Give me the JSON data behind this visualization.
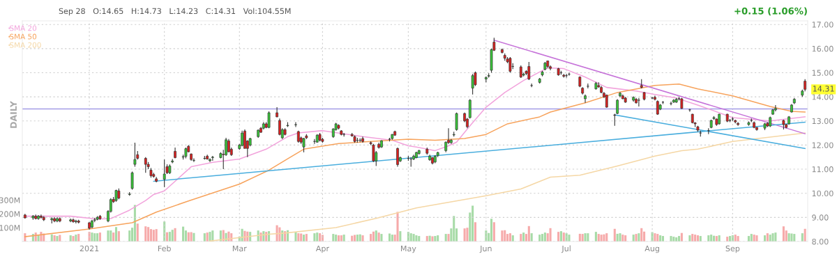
{
  "chart_data": {
    "type": "candlestick",
    "x": [
      "2020-12-11",
      "2020-12-14",
      "2020-12-15",
      "2020-12-16",
      "2020-12-17",
      "2020-12-18",
      "2020-12-21",
      "2020-12-22",
      "2020-12-23",
      "2020-12-24",
      "2020-12-28",
      "2020-12-29",
      "2020-12-30",
      "2020-12-31",
      "2021-01-04",
      "2021-01-05",
      "2021-01-06",
      "2021-01-07",
      "2021-01-08",
      "2021-01-11",
      "2021-01-12",
      "2021-01-13",
      "2021-01-14",
      "2021-01-15",
      "2021-01-19",
      "2021-01-20",
      "2021-01-21",
      "2021-01-22",
      "2021-01-25",
      "2021-01-26",
      "2021-01-27",
      "2021-01-28",
      "2021-01-29",
      "2021-02-01",
      "2021-02-02",
      "2021-02-03",
      "2021-02-04",
      "2021-02-05",
      "2021-02-08",
      "2021-02-09",
      "2021-02-10",
      "2021-02-11",
      "2021-02-12",
      "2021-02-16",
      "2021-02-17",
      "2021-02-18",
      "2021-02-19",
      "2021-02-22",
      "2021-02-23",
      "2021-02-24",
      "2021-02-25",
      "2021-02-26",
      "2021-03-01",
      "2021-03-02",
      "2021-03-03",
      "2021-03-04",
      "2021-03-05",
      "2021-03-08",
      "2021-03-09",
      "2021-03-10",
      "2021-03-11",
      "2021-03-12",
      "2021-03-15",
      "2021-03-16",
      "2021-03-17",
      "2021-03-18",
      "2021-03-19",
      "2021-03-22",
      "2021-03-23",
      "2021-03-24",
      "2021-03-25",
      "2021-03-26",
      "2021-03-29",
      "2021-03-30",
      "2021-03-31",
      "2021-04-01",
      "2021-04-05",
      "2021-04-06",
      "2021-04-07",
      "2021-04-08",
      "2021-04-09",
      "2021-04-12",
      "2021-04-13",
      "2021-04-14",
      "2021-04-15",
      "2021-04-16",
      "2021-04-19",
      "2021-04-20",
      "2021-04-21",
      "2021-04-22",
      "2021-04-23",
      "2021-04-26",
      "2021-04-27",
      "2021-04-28",
      "2021-04-29",
      "2021-04-30",
      "2021-05-03",
      "2021-05-04",
      "2021-05-05",
      "2021-05-06",
      "2021-05-07",
      "2021-05-10",
      "2021-05-11",
      "2021-05-12",
      "2021-05-13",
      "2021-05-14",
      "2021-05-17",
      "2021-05-18",
      "2021-05-19",
      "2021-05-20",
      "2021-05-21",
      "2021-05-24",
      "2021-05-25",
      "2021-05-26",
      "2021-05-27",
      "2021-05-28",
      "2021-06-01",
      "2021-06-02",
      "2021-06-03",
      "2021-06-04",
      "2021-06-07",
      "2021-06-08",
      "2021-06-09",
      "2021-06-10",
      "2021-06-11",
      "2021-06-14",
      "2021-06-15",
      "2021-06-16",
      "2021-06-17",
      "2021-06-18",
      "2021-06-21",
      "2021-06-22",
      "2021-06-23",
      "2021-06-24",
      "2021-06-25",
      "2021-06-28",
      "2021-06-29",
      "2021-06-30",
      "2021-07-01",
      "2021-07-02",
      "2021-07-06",
      "2021-07-07",
      "2021-07-08",
      "2021-07-09",
      "2021-07-12",
      "2021-07-13",
      "2021-07-14",
      "2021-07-15",
      "2021-07-16",
      "2021-07-19",
      "2021-07-20",
      "2021-07-21",
      "2021-07-22",
      "2021-07-23",
      "2021-07-26",
      "2021-07-27",
      "2021-07-28",
      "2021-07-29",
      "2021-07-30",
      "2021-08-02",
      "2021-08-03",
      "2021-08-04",
      "2021-08-05",
      "2021-08-06",
      "2021-08-09",
      "2021-08-10",
      "2021-08-11",
      "2021-08-12",
      "2021-08-13",
      "2021-08-16",
      "2021-08-17",
      "2021-08-18",
      "2021-08-19",
      "2021-08-20",
      "2021-08-23",
      "2021-08-24",
      "2021-08-25",
      "2021-08-26",
      "2021-08-27",
      "2021-08-30",
      "2021-08-31",
      "2021-09-01",
      "2021-09-02",
      "2021-09-03",
      "2021-09-07",
      "2021-09-08",
      "2021-09-09",
      "2021-09-10",
      "2021-09-13",
      "2021-09-14",
      "2021-09-15",
      "2021-09-16",
      "2021-09-17",
      "2021-09-20",
      "2021-09-21",
      "2021-09-22",
      "2021-09-23",
      "2021-09-24",
      "2021-09-27",
      "2021-09-28"
    ],
    "ohlc": [
      [
        9.1,
        9.15,
        8.95,
        8.98
      ],
      [
        8.98,
        9.1,
        8.9,
        9.05
      ],
      [
        9.05,
        9.12,
        8.92,
        8.95
      ],
      [
        8.95,
        9.1,
        8.9,
        9.05
      ],
      [
        9.05,
        9.12,
        8.95,
        9.0
      ],
      [
        9.0,
        9.05,
        8.85,
        8.9
      ],
      [
        8.9,
        9.0,
        8.75,
        8.95
      ],
      [
        8.95,
        9.0,
        8.8,
        8.85
      ],
      [
        8.85,
        9.0,
        8.8,
        8.95
      ],
      [
        8.95,
        9.0,
        8.8,
        8.85
      ],
      [
        8.85,
        8.95,
        8.8,
        8.9
      ],
      [
        8.9,
        8.95,
        8.78,
        8.82
      ],
      [
        8.82,
        8.9,
        8.75,
        8.85
      ],
      [
        8.85,
        8.9,
        8.75,
        8.8
      ],
      [
        8.78,
        8.8,
        8.5,
        8.55
      ],
      [
        8.6,
        8.9,
        8.55,
        8.85
      ],
      [
        8.88,
        8.98,
        8.8,
        8.9
      ],
      [
        8.92,
        9.05,
        8.88,
        9.0
      ],
      [
        9.05,
        9.1,
        8.9,
        8.95
      ],
      [
        8.85,
        9.3,
        8.8,
        9.25
      ],
      [
        9.25,
        9.8,
        9.2,
        9.74
      ],
      [
        9.75,
        9.85,
        9.6,
        9.65
      ],
      [
        9.7,
        10.15,
        9.65,
        10.12
      ],
      [
        10.1,
        10.2,
        9.75,
        9.8
      ],
      [
        9.95,
        10.05,
        9.9,
        9.97
      ],
      [
        10.2,
        10.9,
        10.15,
        10.85
      ],
      [
        11.2,
        12.1,
        11.1,
        11.4
      ],
      [
        11.6,
        11.75,
        11.4,
        11.45
      ],
      [
        11.45,
        11.5,
        10.85,
        11.2
      ],
      [
        11.2,
        11.3,
        11.0,
        11.1
      ],
      [
        10.96,
        11.05,
        10.65,
        10.73
      ],
      [
        10.78,
        10.85,
        10.65,
        10.7
      ],
      [
        10.6,
        10.68,
        10.45,
        10.5
      ],
      [
        10.58,
        11.4,
        10.26,
        10.8
      ],
      [
        11.1,
        11.2,
        10.8,
        10.85
      ],
      [
        10.85,
        11.2,
        10.8,
        11.13
      ],
      [
        11.3,
        11.42,
        11.25,
        11.34
      ],
      [
        11.74,
        11.9,
        11.45,
        11.48
      ],
      [
        11.5,
        11.6,
        11.4,
        11.52
      ],
      [
        11.53,
        11.9,
        11.45,
        11.85
      ],
      [
        11.95,
        12.0,
        11.7,
        11.72
      ],
      [
        11.63,
        11.65,
        11.35,
        11.4
      ],
      [
        11.36,
        11.45,
        11.3,
        11.37
      ],
      [
        11.44,
        11.55,
        11.4,
        11.45
      ],
      [
        11.54,
        11.6,
        11.4,
        11.42
      ],
      [
        11.35,
        11.45,
        11.3,
        11.4
      ],
      [
        11.48,
        11.55,
        11.35,
        11.5
      ],
      [
        11.48,
        11.7,
        11.45,
        11.65
      ],
      [
        11.62,
        11.8,
        11.0,
        11.6
      ],
      [
        11.6,
        12.3,
        11.55,
        12.22
      ],
      [
        12.17,
        12.25,
        11.7,
        11.72
      ],
      [
        11.83,
        11.9,
        11.55,
        11.6
      ],
      [
        11.85,
        12.05,
        11.8,
        12.0
      ],
      [
        11.98,
        12.6,
        11.95,
        12.5
      ],
      [
        12.58,
        12.65,
        11.86,
        11.86
      ],
      [
        12.17,
        12.2,
        11.5,
        11.86
      ],
      [
        12.0,
        12.3,
        11.95,
        12.27
      ],
      [
        12.35,
        12.65,
        12.3,
        12.62
      ],
      [
        12.7,
        12.75,
        12.5,
        12.53
      ],
      [
        12.7,
        12.95,
        12.65,
        12.88
      ],
      [
        12.88,
        12.95,
        12.7,
        12.73
      ],
      [
        12.73,
        13.4,
        12.7,
        13.34
      ],
      [
        13.34,
        13.57,
        13.15,
        13.17
      ],
      [
        13.02,
        13.1,
        12.4,
        12.44
      ],
      [
        12.3,
        12.7,
        12.25,
        12.64
      ],
      [
        12.64,
        12.7,
        12.4,
        12.44
      ],
      [
        12.8,
        12.95,
        12.75,
        12.82
      ],
      [
        12.84,
        12.95,
        12.75,
        12.85
      ],
      [
        12.56,
        12.6,
        12.1,
        12.15
      ],
      [
        12.3,
        12.35,
        12.05,
        12.12
      ],
      [
        11.92,
        12.3,
        11.7,
        12.27
      ],
      [
        12.38,
        12.45,
        12.25,
        12.3
      ],
      [
        12.15,
        12.25,
        12.05,
        12.15
      ],
      [
        12.12,
        12.45,
        12.1,
        12.41
      ],
      [
        12.44,
        12.5,
        12.15,
        12.2
      ],
      [
        12.24,
        12.3,
        12.1,
        12.15
      ],
      [
        12.35,
        12.7,
        12.3,
        12.67
      ],
      [
        12.64,
        12.92,
        12.6,
        12.88
      ],
      [
        12.82,
        12.86,
        12.65,
        12.7
      ],
      [
        12.59,
        12.62,
        12.4,
        12.44
      ],
      [
        12.44,
        12.5,
        12.35,
        12.44
      ],
      [
        12.44,
        12.5,
        12.35,
        12.38
      ],
      [
        12.35,
        12.4,
        12.1,
        12.15
      ],
      [
        12.2,
        12.3,
        12.1,
        12.2
      ],
      [
        12.2,
        12.28,
        12.12,
        12.2
      ],
      [
        12.27,
        12.35,
        12.1,
        12.15
      ],
      [
        12.1,
        12.15,
        12.0,
        12.06
      ],
      [
        12.0,
        12.05,
        11.3,
        11.34
      ],
      [
        11.34,
        11.75,
        11.13,
        11.69
      ],
      [
        12.03,
        12.1,
        11.85,
        11.9
      ],
      [
        11.92,
        12.2,
        11.88,
        12.18
      ],
      [
        12.24,
        12.3,
        12.15,
        12.24
      ],
      [
        12.27,
        12.46,
        12.22,
        12.44
      ],
      [
        12.56,
        12.6,
        12.38,
        12.41
      ],
      [
        11.86,
        11.9,
        11.1,
        11.19
      ],
      [
        11.34,
        11.52,
        11.3,
        11.48
      ],
      [
        11.45,
        11.55,
        11.35,
        11.45
      ],
      [
        11.42,
        11.5,
        11.1,
        11.42
      ],
      [
        11.42,
        11.6,
        11.38,
        11.54
      ],
      [
        11.48,
        11.72,
        11.45,
        11.69
      ],
      [
        11.65,
        11.8,
        11.6,
        11.77
      ],
      [
        11.83,
        11.9,
        11.6,
        11.66
      ],
      [
        11.39,
        11.6,
        11.35,
        11.54
      ],
      [
        11.48,
        11.5,
        11.2,
        11.25
      ],
      [
        11.3,
        11.58,
        11.25,
        11.54
      ],
      [
        11.57,
        11.72,
        11.5,
        11.69
      ],
      [
        11.77,
        12.15,
        11.7,
        12.12
      ],
      [
        12.2,
        12.7,
        12.05,
        12.1
      ],
      [
        12.1,
        12.25,
        12.05,
        12.2
      ],
      [
        12.42,
        12.55,
        12.35,
        12.44
      ],
      [
        12.64,
        13.35,
        12.6,
        13.31
      ],
      [
        13.31,
        13.35,
        12.95,
        13.0
      ],
      [
        13.08,
        13.12,
        12.7,
        12.76
      ],
      [
        13.14,
        13.9,
        13.1,
        13.86
      ],
      [
        14.36,
        14.95,
        14.1,
        14.88
      ],
      [
        15.0,
        15.05,
        14.45,
        14.5
      ],
      [
        14.74,
        14.85,
        14.6,
        14.8
      ],
      [
        14.86,
        14.98,
        14.8,
        14.88
      ],
      [
        15.1,
        16.0,
        15.0,
        15.96
      ],
      [
        16.27,
        16.45,
        15.9,
        15.93
      ],
      [
        15.96,
        16.0,
        15.8,
        15.84
      ],
      [
        15.72,
        15.8,
        15.5,
        15.6
      ],
      [
        15.57,
        15.65,
        15.4,
        15.45
      ],
      [
        15.6,
        15.65,
        15.0,
        15.06
      ],
      [
        15.26,
        15.4,
        15.15,
        15.26
      ],
      [
        15.24,
        15.3,
        14.78,
        14.82
      ],
      [
        14.9,
        15.0,
        14.85,
        14.94
      ],
      [
        15.06,
        15.1,
        14.9,
        14.97
      ],
      [
        15.26,
        15.45,
        14.7,
        14.74
      ],
      [
        14.47,
        14.55,
        14.4,
        14.47
      ],
      [
        14.6,
        14.78,
        14.55,
        14.74
      ],
      [
        14.91,
        15.08,
        14.85,
        15.03
      ],
      [
        15.14,
        15.45,
        15.1,
        15.4
      ],
      [
        15.49,
        15.5,
        15.2,
        15.26
      ],
      [
        15.25,
        15.3,
        15.1,
        15.18
      ],
      [
        15.17,
        15.2,
        14.88,
        14.91
      ],
      [
        15.0,
        15.08,
        14.92,
        15.0
      ],
      [
        14.9,
        14.95,
        14.8,
        14.85
      ],
      [
        14.88,
        14.95,
        14.8,
        14.88
      ],
      [
        14.94,
        15.0,
        14.88,
        14.94
      ],
      [
        14.82,
        14.85,
        14.4,
        14.44
      ],
      [
        14.36,
        14.4,
        14.1,
        14.15
      ],
      [
        13.92,
        14.1,
        13.75,
        14.04
      ],
      [
        14.44,
        14.55,
        14.35,
        14.44
      ],
      [
        14.33,
        14.62,
        14.3,
        14.56
      ],
      [
        14.47,
        14.6,
        14.38,
        14.41
      ],
      [
        14.39,
        14.45,
        14.15,
        14.18
      ],
      [
        14.15,
        14.2,
        13.95,
        14.0
      ],
      [
        14.07,
        14.1,
        13.55,
        13.57
      ],
      [
        13.25,
        13.3,
        12.8,
        13.23
      ],
      [
        13.31,
        13.9,
        13.28,
        13.86
      ],
      [
        14.04,
        14.2,
        13.98,
        14.15
      ],
      [
        14.04,
        14.1,
        13.9,
        13.92
      ],
      [
        13.95,
        14.0,
        13.75,
        13.78
      ],
      [
        13.86,
        14.02,
        13.8,
        13.98
      ],
      [
        13.9,
        13.95,
        13.72,
        13.75
      ],
      [
        13.86,
        13.95,
        13.6,
        13.86
      ],
      [
        14.47,
        14.73,
        14.35,
        14.39
      ],
      [
        14.18,
        14.2,
        13.85,
        13.9
      ],
      [
        13.95,
        14.0,
        13.9,
        13.95
      ],
      [
        13.98,
        14.05,
        13.85,
        13.9
      ],
      [
        13.81,
        13.85,
        13.25,
        13.28
      ],
      [
        13.49,
        13.7,
        13.45,
        13.66
      ],
      [
        13.78,
        13.82,
        13.7,
        13.78
      ],
      [
        13.72,
        13.8,
        13.65,
        13.72
      ],
      [
        13.78,
        13.9,
        13.75,
        13.86
      ],
      [
        13.78,
        13.95,
        13.75,
        13.9
      ],
      [
        13.92,
        14.0,
        13.85,
        13.92
      ],
      [
        13.92,
        13.95,
        13.5,
        13.52
      ],
      [
        13.46,
        13.5,
        13.38,
        13.46
      ],
      [
        13.28,
        13.3,
        12.9,
        12.93
      ],
      [
        12.92,
        12.95,
        12.75,
        12.88
      ],
      [
        12.76,
        12.8,
        12.55,
        12.62
      ],
      [
        12.5,
        12.6,
        12.35,
        12.5
      ],
      [
        12.6,
        12.7,
        12.45,
        12.6
      ],
      [
        12.73,
        13.05,
        12.7,
        13.02
      ],
      [
        13.1,
        13.2,
        13.05,
        13.14
      ],
      [
        13.08,
        13.1,
        12.8,
        12.85
      ],
      [
        12.88,
        13.3,
        12.85,
        13.28
      ],
      [
        13.28,
        13.3,
        12.95,
        12.99
      ],
      [
        13.02,
        13.08,
        12.95,
        13.02
      ],
      [
        13.08,
        13.15,
        13.0,
        13.08
      ],
      [
        13.02,
        13.05,
        12.9,
        12.96
      ],
      [
        12.9,
        12.95,
        12.8,
        12.85
      ],
      [
        12.85,
        12.98,
        12.8,
        12.93
      ],
      [
        13.02,
        13.1,
        12.95,
        13.02
      ],
      [
        12.93,
        12.98,
        12.7,
        12.73
      ],
      [
        12.73,
        12.75,
        12.6,
        12.64
      ],
      [
        12.7,
        12.92,
        12.62,
        12.88
      ],
      [
        12.9,
        12.95,
        12.75,
        12.79
      ],
      [
        12.79,
        13.18,
        12.75,
        13.14
      ],
      [
        13.28,
        13.5,
        13.25,
        13.46
      ],
      [
        13.46,
        13.66,
        13.4,
        13.52
      ],
      [
        13.02,
        13.05,
        12.65,
        12.85
      ],
      [
        12.85,
        12.88,
        12.7,
        12.73
      ],
      [
        12.88,
        13.2,
        12.85,
        13.17
      ],
      [
        13.37,
        13.7,
        13.35,
        13.66
      ],
      [
        13.75,
        13.95,
        13.7,
        13.9
      ],
      [
        14.07,
        14.3,
        14.0,
        14.24
      ],
      [
        14.65,
        14.73,
        14.23,
        14.31
      ]
    ],
    "colors": [
      "#d9201f",
      "#39c639",
      "#d9201f",
      "#39c639",
      "#d9201f",
      "#d9201f",
      "#39c639",
      "#d9201f",
      "#39c639",
      "#d9201f",
      "#39c639",
      "#d9201f",
      "#39c639",
      "#d9201f",
      "#d9201f",
      "#39c639",
      "#39c639",
      "#39c639",
      "#d9201f",
      "#39c639",
      "#39c639",
      "#d9201f",
      "#39c639",
      "#d9201f",
      "#39c639",
      "#39c639",
      "#39c639",
      "#d9201f",
      "#d9201f",
      "#d9201f",
      "#d9201f",
      "#d9201f",
      "#d9201f",
      "#39c639",
      "#d9201f",
      "#39c639",
      "#39c639",
      "#d9201f",
      "#39c639",
      "#39c639",
      "#d9201f",
      "#d9201f",
      "#39c639",
      "#39c639",
      "#d9201f",
      "#39c639",
      "#39c639",
      "#39c639",
      "#d9201f",
      "#39c639",
      "#d9201f",
      "#d9201f",
      "#39c639",
      "#39c639",
      "#d9201f",
      "#d9201f",
      "#39c639",
      "#39c639",
      "#d9201f",
      "#39c639",
      "#d9201f",
      "#39c639",
      "#d9201f",
      "#d9201f",
      "#39c639",
      "#d9201f",
      "#39c639",
      "#39c639",
      "#d9201f",
      "#d9201f",
      "#39c639",
      "#d9201f",
      "#333333",
      "#39c639",
      "#d9201f",
      "#d9201f",
      "#39c639",
      "#39c639",
      "#d9201f",
      "#d9201f",
      "#333333",
      "#d9201f",
      "#d9201f",
      "#333333",
      "#333333",
      "#d9201f",
      "#d9201f",
      "#d9201f",
      "#39c639",
      "#d9201f",
      "#39c639",
      "#333333",
      "#39c639",
      "#d9201f",
      "#d9201f",
      "#39c639",
      "#333333",
      "#333333",
      "#39c639",
      "#39c639",
      "#39c639",
      "#d9201f",
      "#39c639",
      "#d9201f",
      "#39c639",
      "#39c639",
      "#39c639",
      "#d9201f",
      "#39c639",
      "#39c639",
      "#39c639",
      "#d9201f",
      "#d9201f",
      "#39c639",
      "#39c639",
      "#d9201f",
      "#39c639",
      "#39c639",
      "#39c639",
      "#d9201f",
      "#d9201f",
      "#d9201f",
      "#d9201f",
      "#d9201f",
      "#333333",
      "#d9201f",
      "#39c639",
      "#d9201f",
      "#d9201f",
      "#333333",
      "#39c639",
      "#39c639",
      "#39c639",
      "#d9201f",
      "#d9201f",
      "#d9201f",
      "#333333",
      "#d9201f",
      "#333333",
      "#333333",
      "#d9201f",
      "#d9201f",
      "#39c639",
      "#333333",
      "#39c639",
      "#d9201f",
      "#d9201f",
      "#d9201f",
      "#d9201f",
      "#d9201f",
      "#39c639",
      "#39c639",
      "#d9201f",
      "#d9201f",
      "#39c639",
      "#d9201f",
      "#333333",
      "#d9201f",
      "#d9201f",
      "#333333",
      "#d9201f",
      "#d9201f",
      "#39c639",
      "#333333",
      "#333333",
      "#39c639",
      "#39c639",
      "#333333",
      "#d9201f",
      "#333333",
      "#d9201f",
      "#d9201f",
      "#d9201f",
      "#333333",
      "#333333",
      "#39c639",
      "#39c639",
      "#d9201f",
      "#39c639",
      "#d9201f",
      "#333333",
      "#333333",
      "#d9201f",
      "#d9201f",
      "#39c639",
      "#333333",
      "#d9201f",
      "#d9201f",
      "#39c639",
      "#d9201f",
      "#39c639",
      "#39c639",
      "#39c639",
      "#d9201f",
      "#d9201f",
      "#39c639",
      "#39c639",
      "#39c639",
      "#39c639",
      "#d9201f"
    ],
    "series": [
      {
        "type": "bar",
        "axis": "y2",
        "values": [
          60,
          55,
          65,
          50,
          70,
          58,
          52,
          45,
          40,
          48,
          45,
          40,
          50,
          55,
          70,
          65,
          60,
          60,
          65,
          80,
          80,
          65,
          105,
          75,
          80,
          100,
          265,
          130,
          110,
          105,
          90,
          85,
          90,
          145,
          67,
          70,
          85,
          97,
          108,
          80,
          67,
          68,
          62,
          60,
          65,
          70,
          80,
          80,
          83,
          62,
          72,
          60,
          36,
          92,
          77,
          72,
          70,
          80,
          65,
          75,
          70,
          75,
          118,
          103,
          80,
          75,
          82,
          70,
          60,
          58,
          50,
          55,
          60,
          65,
          60,
          48,
          55,
          50,
          45,
          45,
          50,
          42,
          48,
          50,
          52,
          45,
          55,
          72,
          80,
          65,
          55,
          58,
          50,
          50,
          215,
          75,
          70,
          60,
          55,
          45,
          40,
          40,
          42,
          38,
          40,
          45,
          55,
          55,
          95,
          185,
          95,
          95,
          100,
          210,
          260,
          140,
          80,
          62,
          165,
          140,
          80,
          82,
          55,
          60,
          45,
          55,
          65,
          55,
          112,
          60,
          50,
          55,
          65,
          60,
          97,
          70,
          75,
          65,
          60,
          50,
          56,
          55,
          60,
          60,
          70,
          55,
          50,
          52,
          60,
          92,
          56,
          60,
          50,
          45,
          50,
          55,
          60,
          97,
          72,
          68,
          60,
          55,
          45,
          40,
          40,
          35,
          30,
          40,
          62,
          45,
          55,
          50,
          45,
          40,
          45,
          50,
          42,
          40,
          45,
          35,
          40,
          45,
          50,
          40,
          40,
          55,
          50,
          45,
          45,
          60,
          50,
          60,
          65,
          110,
          80,
          60,
          58,
          55,
          60,
          92
        ],
        "colors": [
          "#f6aaaa",
          "#a7dba7",
          "#f6aaaa",
          "#a7dba7",
          "#f6aaaa",
          "#f6aaaa",
          "#a7dba7",
          "#f6aaaa",
          "#a7dba7",
          "#f6aaaa",
          "#a7dba7",
          "#f6aaaa",
          "#a7dba7",
          "#f6aaaa",
          "#f6aaaa",
          "#a7dba7",
          "#a7dba7",
          "#a7dba7",
          "#f6aaaa",
          "#a7dba7",
          "#a7dba7",
          "#f6aaaa",
          "#a7dba7",
          "#f6aaaa",
          "#a7dba7",
          "#a7dba7",
          "#a7dba7",
          "#f6aaaa",
          "#f6aaaa",
          "#f6aaaa",
          "#f6aaaa",
          "#f6aaaa",
          "#f6aaaa",
          "#a7dba7",
          "#f6aaaa",
          "#a7dba7",
          "#a7dba7",
          "#f6aaaa",
          "#a7dba7",
          "#a7dba7",
          "#f6aaaa",
          "#f6aaaa",
          "#a7dba7",
          "#a7dba7",
          "#f6aaaa",
          "#a7dba7",
          "#a7dba7",
          "#a7dba7",
          "#f6aaaa",
          "#a7dba7",
          "#f6aaaa",
          "#f6aaaa",
          "#a7dba7",
          "#a7dba7",
          "#f6aaaa",
          "#f6aaaa",
          "#a7dba7",
          "#a7dba7",
          "#f6aaaa",
          "#a7dba7",
          "#f6aaaa",
          "#a7dba7",
          "#f6aaaa",
          "#f6aaaa",
          "#a7dba7",
          "#f6aaaa",
          "#a7dba7",
          "#a7dba7",
          "#f6aaaa",
          "#f6aaaa",
          "#a7dba7",
          "#f6aaaa",
          "#a7dba7",
          "#a7dba7",
          "#f6aaaa",
          "#f6aaaa",
          "#a7dba7",
          "#a7dba7",
          "#f6aaaa",
          "#f6aaaa",
          "#a7dba7",
          "#f6aaaa",
          "#f6aaaa",
          "#a7dba7",
          "#a7dba7",
          "#f6aaaa",
          "#f6aaaa",
          "#f6aaaa",
          "#a7dba7",
          "#f6aaaa",
          "#a7dba7",
          "#a7dba7",
          "#a7dba7",
          "#f6aaaa",
          "#f6aaaa",
          "#a7dba7",
          "#a7dba7",
          "#a7dba7",
          "#a7dba7",
          "#a7dba7",
          "#a7dba7",
          "#f6aaaa",
          "#a7dba7",
          "#f6aaaa",
          "#a7dba7",
          "#a7dba7",
          "#a7dba7",
          "#f6aaaa",
          "#a7dba7",
          "#a7dba7",
          "#a7dba7",
          "#f6aaaa",
          "#f6aaaa",
          "#a7dba7",
          "#a7dba7",
          "#f6aaaa",
          "#a7dba7",
          "#a7dba7",
          "#a7dba7",
          "#f6aaaa",
          "#f6aaaa",
          "#f6aaaa",
          "#f6aaaa",
          "#f6aaaa",
          "#a7dba7",
          "#f6aaaa",
          "#a7dba7",
          "#f6aaaa",
          "#f6aaaa",
          "#a7dba7",
          "#a7dba7",
          "#a7dba7",
          "#a7dba7",
          "#f6aaaa",
          "#f6aaaa",
          "#f6aaaa",
          "#a7dba7",
          "#f6aaaa",
          "#a7dba7",
          "#a7dba7",
          "#f6aaaa",
          "#f6aaaa",
          "#a7dba7",
          "#a7dba7",
          "#a7dba7",
          "#f6aaaa",
          "#f6aaaa",
          "#f6aaaa",
          "#f6aaaa",
          "#f6aaaa",
          "#a7dba7",
          "#a7dba7",
          "#f6aaaa",
          "#f6aaaa",
          "#a7dba7",
          "#f6aaaa",
          "#a7dba7",
          "#f6aaaa",
          "#f6aaaa",
          "#a7dba7",
          "#f6aaaa",
          "#f6aaaa",
          "#a7dba7",
          "#a7dba7",
          "#a7dba7",
          "#a7dba7",
          "#a7dba7",
          "#a7dba7",
          "#f6aaaa",
          "#a7dba7",
          "#f6aaaa",
          "#f6aaaa",
          "#f6aaaa",
          "#a7dba7",
          "#a7dba7",
          "#a7dba7",
          "#a7dba7",
          "#f6aaaa",
          "#a7dba7",
          "#f6aaaa",
          "#a7dba7",
          "#a7dba7",
          "#f6aaaa",
          "#f6aaaa",
          "#a7dba7",
          "#a7dba7",
          "#f6aaaa",
          "#f6aaaa",
          "#a7dba7",
          "#f6aaaa",
          "#a7dba7",
          "#a7dba7",
          "#a7dba7",
          "#f6aaaa",
          "#f6aaaa",
          "#a7dba7",
          "#a7dba7",
          "#a7dba7",
          "#a7dba7",
          "#f6aaaa"
        ]
      },
      {
        "type": "line",
        "name": "SMA 20",
        "color": "#f2a3dc",
        "x": [
          "2020-12-11",
          "2020-12-28",
          "2021-01-07",
          "2021-01-12",
          "2021-01-19",
          "2021-01-25",
          "2021-01-28",
          "2021-02-01",
          "2021-02-11",
          "2021-02-19",
          "2021-03-01",
          "2021-03-11",
          "2021-03-19",
          "2021-03-23",
          "2021-04-01",
          "2021-04-16",
          "2021-04-27",
          "2021-05-03",
          "2021-05-06",
          "2021-05-13",
          "2021-05-18",
          "2021-05-21",
          "2021-05-26",
          "2021-06-01",
          "2021-06-08",
          "2021-06-15",
          "2021-06-21",
          "2021-06-24",
          "2021-06-30",
          "2021-07-08",
          "2021-07-16",
          "2021-07-27",
          "2021-08-03",
          "2021-08-11",
          "2021-08-19",
          "2021-09-01",
          "2021-09-15",
          "2021-09-28"
        ],
        "values": [
          9.05,
          9.05,
          8.93,
          8.95,
          9.3,
          9.7,
          9.95,
          10.1,
          11.1,
          11.28,
          11.42,
          11.83,
          12.35,
          12.5,
          12.6,
          12.35,
          12.2,
          11.97,
          11.92,
          11.77,
          11.97,
          12.12,
          12.8,
          13.57,
          14.18,
          14.68,
          15.03,
          15.2,
          15.17,
          14.82,
          14.39,
          14.24,
          14.1,
          13.95,
          13.66,
          13.14,
          13.0,
          13.17
        ]
      },
      {
        "type": "line",
        "name": "SMA 50",
        "color": "#f7a35c",
        "x": [
          "2020-12-11",
          "2021-01-04",
          "2021-01-20",
          "2021-01-29",
          "2021-02-10",
          "2021-03-01",
          "2021-03-12",
          "2021-03-19",
          "2021-03-25",
          "2021-04-07",
          "2021-04-19",
          "2021-05-03",
          "2021-05-13",
          "2021-05-24",
          "2021-06-01",
          "2021-06-09",
          "2021-06-21",
          "2021-06-25",
          "2021-07-08",
          "2021-07-20",
          "2021-08-03",
          "2021-08-12",
          "2021-08-19",
          "2021-09-01",
          "2021-09-15",
          "2021-09-23",
          "2021-09-28"
        ],
        "values": [
          8.2,
          8.52,
          8.78,
          9.22,
          9.68,
          10.38,
          10.96,
          11.43,
          11.83,
          12.06,
          12.15,
          12.24,
          12.2,
          12.27,
          12.44,
          12.88,
          13.17,
          13.37,
          13.75,
          14.18,
          14.47,
          14.53,
          14.33,
          14.04,
          13.6,
          13.4,
          13.37
        ]
      },
      {
        "type": "line",
        "name": "SMA 200",
        "color": "#f5d7a5",
        "x": [
          "2021-02-18",
          "2021-03-12",
          "2021-03-18",
          "2021-04-06",
          "2021-04-21",
          "2021-05-06",
          "2021-06-01",
          "2021-06-14",
          "2021-06-25",
          "2021-07-06",
          "2021-07-20",
          "2021-08-03",
          "2021-08-13",
          "2021-08-19",
          "2021-09-01",
          "2021-09-28"
        ],
        "values": [
          8.02,
          8.3,
          8.35,
          8.58,
          8.96,
          9.39,
          9.9,
          10.18,
          10.67,
          10.75,
          11.13,
          11.54,
          11.77,
          11.83,
          12.15,
          12.5
        ]
      },
      {
        "type": "line",
        "color": "#c673d9",
        "x": [
          "2021-06-04",
          "2021-09-28"
        ],
        "values": [
          16.35,
          12.47
        ]
      },
      {
        "type": "line",
        "color": "#4aaede",
        "x": [
          "2021-01-28",
          "2021-09-28"
        ],
        "values": [
          10.5,
          12.95
        ]
      },
      {
        "type": "line",
        "color": "#4aaede",
        "x": [
          "2021-07-19",
          "2021-09-28"
        ],
        "values": [
          13.25,
          11.86
        ]
      }
    ],
    "ref_lines": [
      {
        "axis": "y",
        "value": 13.5,
        "color": "#a39ce6"
      }
    ],
    "xlim": [
      "2020-12-10",
      "2021-09-29"
    ],
    "xticks": [
      {
        "value": "2021-01-04",
        "label": "2021"
      },
      {
        "value": "2021-02-01",
        "label": "Feb"
      },
      {
        "value": "2021-03-01",
        "label": "Mar"
      },
      {
        "value": "2021-04-01",
        "label": "Apr"
      },
      {
        "value": "2021-05-03",
        "label": "May"
      },
      {
        "value": "2021-06-01",
        "label": "Jun"
      },
      {
        "value": "2021-07-01",
        "label": "Jul"
      },
      {
        "value": "2021-08-02",
        "label": "Aug"
      },
      {
        "value": "2021-09-01",
        "label": "Sep"
      }
    ],
    "ylim": [
      8,
      17.15
    ],
    "yticks": [
      {
        "value": 8,
        "label": "8.00"
      },
      {
        "value": 9,
        "label": "9.00"
      },
      {
        "value": 10,
        "label": "10.00"
      },
      {
        "value": 11,
        "label": "11.00"
      },
      {
        "value": 12,
        "label": "12.00"
      },
      {
        "value": 13,
        "label": "13.00"
      },
      {
        "value": 14,
        "label": "14.00"
      },
      {
        "value": 15,
        "label": "15.00"
      },
      {
        "value": 16,
        "label": "16.00"
      },
      {
        "value": 17,
        "label": "17.00"
      }
    ],
    "y2lim": [
      0,
      1600
    ],
    "y2ticks": [
      {
        "value": 100,
        "label": "100M"
      },
      {
        "value": 200,
        "label": "200M"
      },
      {
        "value": 300,
        "label": "300M"
      }
    ],
    "grid": true,
    "legend": "top left",
    "annotations": [
      "Sep 28   O:14.65   H:14.73   L:14.23   C:14.31   Vol:104.55M",
      "+0.15 (1.06%)",
      "DAILY",
      "14.31"
    ]
  }
}
